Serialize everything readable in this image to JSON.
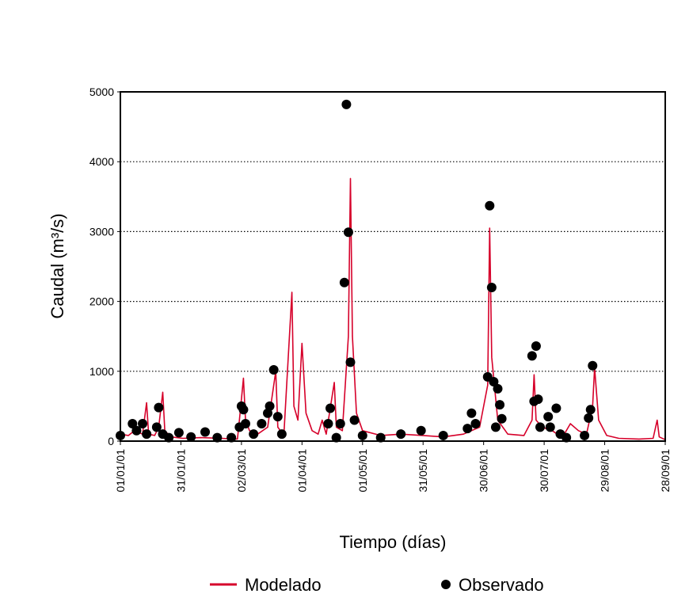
{
  "chart_data": {
    "type": "line",
    "xlabel": "Tiempo (días)",
    "ylabel": "Caudal (m³/s)",
    "xlim": [
      "2001-01-01",
      "2001-09-28"
    ],
    "xticks": [
      {
        "value": "2001-01-01",
        "label": "01/01/01"
      },
      {
        "value": "2001-01-31",
        "label": "31/01/01"
      },
      {
        "value": "2001-03-02",
        "label": "02/03/01"
      },
      {
        "value": "2001-04-01",
        "label": "01/04/01"
      },
      {
        "value": "2001-05-01",
        "label": "01/05/01"
      },
      {
        "value": "2001-05-31",
        "label": "31/05/01"
      },
      {
        "value": "2001-06-30",
        "label": "30/06/01"
      },
      {
        "value": "2001-07-30",
        "label": "30/07/01"
      },
      {
        "value": "2001-08-29",
        "label": "29/08/01"
      },
      {
        "value": "2001-09-28",
        "label": "28/09/01"
      }
    ],
    "ylim": [
      0,
      5000
    ],
    "yticks": [
      0,
      1000,
      2000,
      3000,
      4000,
      5000
    ],
    "grid": true,
    "legend": "bottom",
    "series": [
      {
        "name": "Modelado",
        "type": "line",
        "color": "#d6002a",
        "x": [
          "2001-01-01",
          "2001-01-05",
          "2001-01-08",
          "2001-01-12",
          "2001-01-14",
          "2001-01-15",
          "2001-01-18",
          "2001-01-20",
          "2001-01-22",
          "2001-01-23",
          "2001-01-26",
          "2001-02-01",
          "2001-02-10",
          "2001-02-20",
          "2001-02-28",
          "2001-03-01",
          "2001-03-03",
          "2001-03-04",
          "2001-03-06",
          "2001-03-10",
          "2001-03-15",
          "2001-03-19",
          "2001-03-20",
          "2001-03-23",
          "2001-03-27",
          "2001-03-28",
          "2001-03-30",
          "2001-04-01",
          "2001-04-03",
          "2001-04-06",
          "2001-04-09",
          "2001-04-11",
          "2001-04-13",
          "2001-04-17",
          "2001-04-18",
          "2001-04-21",
          "2001-04-24",
          "2001-04-25",
          "2001-04-26",
          "2001-04-28",
          "2001-05-01",
          "2001-05-10",
          "2001-05-20",
          "2001-05-31",
          "2001-06-10",
          "2001-06-20",
          "2001-06-28",
          "2001-07-02",
          "2001-07-03",
          "2001-07-04",
          "2001-07-07",
          "2001-07-12",
          "2001-07-20",
          "2001-07-24",
          "2001-07-25",
          "2001-07-26",
          "2001-07-29",
          "2001-08-03",
          "2001-08-08",
          "2001-08-12",
          "2001-08-16",
          "2001-08-20",
          "2001-08-23",
          "2001-08-24",
          "2001-08-26",
          "2001-08-30",
          "2001-09-05",
          "2001-09-15",
          "2001-09-22",
          "2001-09-24",
          "2001-09-25",
          "2001-09-28"
        ],
        "values": [
          100,
          80,
          150,
          100,
          550,
          100,
          80,
          200,
          700,
          150,
          60,
          40,
          50,
          40,
          30,
          300,
          900,
          300,
          150,
          100,
          200,
          1000,
          200,
          80,
          2130,
          500,
          300,
          1400,
          400,
          150,
          100,
          300,
          100,
          840,
          200,
          150,
          1500,
          3760,
          1500,
          400,
          150,
          80,
          100,
          80,
          60,
          100,
          200,
          800,
          3050,
          1200,
          300,
          100,
          80,
          300,
          950,
          300,
          200,
          150,
          50,
          250,
          150,
          100,
          500,
          1050,
          300,
          80,
          40,
          30,
          40,
          300,
          60,
          20
        ]
      },
      {
        "name": "Observado",
        "type": "scatter",
        "color": "#000000",
        "x": [
          "2001-01-01",
          "2001-01-07",
          "2001-01-09",
          "2001-01-12",
          "2001-01-14",
          "2001-01-19",
          "2001-01-20",
          "2001-01-22",
          "2001-01-25",
          "2001-01-30",
          "2001-02-05",
          "2001-02-12",
          "2001-02-18",
          "2001-02-25",
          "2001-03-01",
          "2001-03-02",
          "2001-03-03",
          "2001-03-04",
          "2001-03-08",
          "2001-03-12",
          "2001-03-15",
          "2001-03-16",
          "2001-03-18",
          "2001-03-20",
          "2001-03-22",
          "2001-04-14",
          "2001-04-15",
          "2001-04-18",
          "2001-04-20",
          "2001-04-22",
          "2001-04-23",
          "2001-04-24",
          "2001-04-25",
          "2001-04-27",
          "2001-05-01",
          "2001-05-10",
          "2001-05-20",
          "2001-05-30",
          "2001-06-10",
          "2001-06-22",
          "2001-06-24",
          "2001-06-26",
          "2001-07-02",
          "2001-07-03",
          "2001-07-04",
          "2001-07-05",
          "2001-07-06",
          "2001-07-07",
          "2001-07-08",
          "2001-07-09",
          "2001-07-24",
          "2001-07-25",
          "2001-07-26",
          "2001-07-27",
          "2001-07-28",
          "2001-08-01",
          "2001-08-02",
          "2001-08-05",
          "2001-08-07",
          "2001-08-10",
          "2001-08-19",
          "2001-08-21",
          "2001-08-22",
          "2001-08-23"
        ],
        "values": [
          80,
          250,
          150,
          250,
          100,
          200,
          480,
          100,
          50,
          120,
          60,
          130,
          50,
          50,
          200,
          500,
          450,
          250,
          100,
          250,
          400,
          500,
          1020,
          350,
          100,
          250,
          470,
          50,
          250,
          2270,
          4820,
          2990,
          1130,
          300,
          80,
          50,
          100,
          150,
          80,
          180,
          400,
          250,
          920,
          3370,
          2200,
          850,
          200,
          750,
          520,
          320,
          1220,
          570,
          1360,
          600,
          200,
          350,
          200,
          470,
          100,
          50,
          80,
          330,
          450,
          1080
        ]
      }
    ]
  }
}
